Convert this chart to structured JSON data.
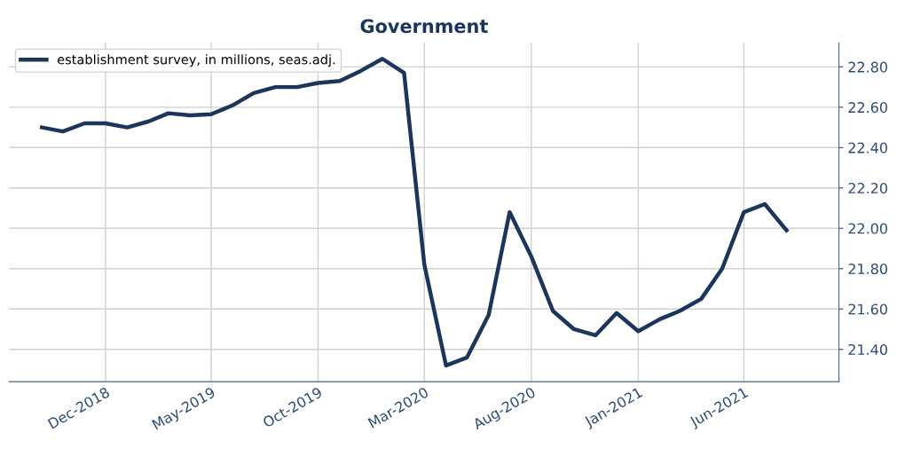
{
  "chart_data": {
    "type": "line",
    "title": "Government",
    "x": [
      "2018-09",
      "2018-10",
      "2018-11",
      "2018-12",
      "2019-01",
      "2019-02",
      "2019-03",
      "2019-04",
      "2019-05",
      "2019-06",
      "2019-07",
      "2019-08",
      "2019-09",
      "2019-10",
      "2019-11",
      "2019-12",
      "2020-01",
      "2020-02",
      "2020-03",
      "2020-04",
      "2020-05",
      "2020-06",
      "2020-07",
      "2020-08",
      "2020-09",
      "2020-10",
      "2020-11",
      "2020-12",
      "2021-01",
      "2021-02",
      "2021-03",
      "2021-04",
      "2021-05",
      "2021-06",
      "2021-07",
      "2021-08"
    ],
    "series": [
      {
        "name": "establishment survey, in millions, seas.adj.",
        "color": "#1b365d",
        "values": [
          22.5,
          22.48,
          22.52,
          22.52,
          22.5,
          22.53,
          22.57,
          22.56,
          22.565,
          22.61,
          22.67,
          22.7,
          22.7,
          22.72,
          22.73,
          22.78,
          22.84,
          22.77,
          21.82,
          21.32,
          21.36,
          21.57,
          22.08,
          21.86,
          21.59,
          21.5,
          21.47,
          21.58,
          21.49,
          21.55,
          21.59,
          21.65,
          21.8,
          22.08,
          22.12,
          21.99
        ]
      }
    ],
    "xlim": [
      "2018-07-16",
      "2021-10-15"
    ],
    "xticks": [
      {
        "value": "2018-12-01",
        "label": "Dec-2018"
      },
      {
        "value": "2019-05-01",
        "label": "May-2019"
      },
      {
        "value": "2019-10-01",
        "label": "Oct-2019"
      },
      {
        "value": "2020-03-01",
        "label": "Mar-2020"
      },
      {
        "value": "2020-08-01",
        "label": "Aug-2020"
      },
      {
        "value": "2021-01-01",
        "label": "Jan-2021"
      },
      {
        "value": "2021-06-01",
        "label": "Jun-2021"
      }
    ],
    "ylim": [
      21.24,
      22.92
    ],
    "yticks": [
      {
        "value": 21.4,
        "label": "21.40"
      },
      {
        "value": 21.6,
        "label": "21.60"
      },
      {
        "value": 21.8,
        "label": "21.80"
      },
      {
        "value": 22.0,
        "label": "22.00"
      },
      {
        "value": 22.2,
        "label": "22.20"
      },
      {
        "value": 22.4,
        "label": "22.40"
      },
      {
        "value": 22.6,
        "label": "22.60"
      },
      {
        "value": 22.8,
        "label": "22.80"
      }
    ],
    "grid": true,
    "legend": "top left",
    "marker": "none",
    "line_style": "solid"
  }
}
